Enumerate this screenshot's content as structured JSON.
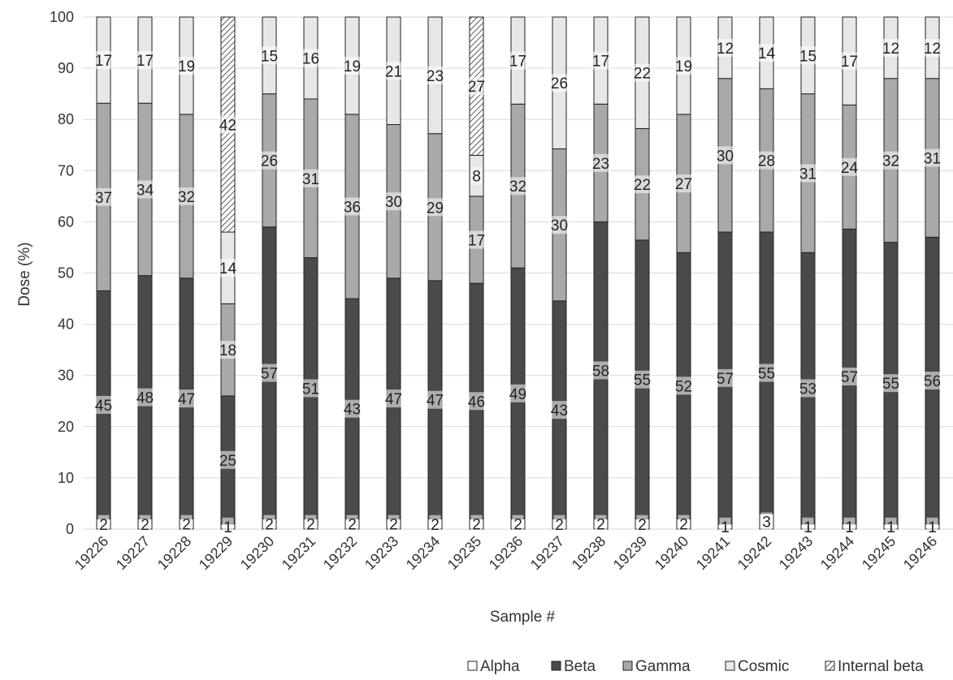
{
  "chart_data": {
    "type": "bar",
    "stacked": true,
    "normalized_percent": true,
    "title": "",
    "xlabel": "Sample #",
    "ylabel": "Dose (%)",
    "ylim": [
      0,
      100
    ],
    "yticks": [
      0,
      10,
      20,
      30,
      40,
      50,
      60,
      70,
      80,
      90,
      100
    ],
    "grid": "horizontal",
    "legend_position": "bottom-right",
    "categories": [
      "19226",
      "19227",
      "19228",
      "19229",
      "19230",
      "19231",
      "19232",
      "19233",
      "19234",
      "19235",
      "19236",
      "19237",
      "19238",
      "19239",
      "19240",
      "19241",
      "19242",
      "19243",
      "19244",
      "19245",
      "19246"
    ],
    "series": [
      {
        "name": "Alpha",
        "color": "#ffffff",
        "pattern": "none",
        "values": [
          2,
          2,
          2,
          1,
          2,
          2,
          2,
          2,
          2,
          2,
          2,
          2,
          2,
          2,
          2,
          1,
          3,
          1,
          1,
          1,
          1
        ],
        "labels": [
          "2",
          "2",
          "2",
          "1",
          "2",
          "2",
          "2",
          "2",
          "2",
          "2",
          "2",
          "2",
          "2",
          "2",
          "2",
          "1",
          "3",
          "1",
          "1",
          "1",
          "1"
        ]
      },
      {
        "name": "Beta",
        "color": "#4a4a4a",
        "pattern": "none",
        "values": [
          45,
          48,
          47,
          25,
          57,
          51,
          43,
          47,
          47,
          46,
          49,
          43,
          58,
          55,
          52,
          57,
          55,
          53,
          57,
          55,
          56
        ],
        "labels": [
          "45",
          "48",
          "47",
          "25",
          "57",
          "51",
          "43",
          "47",
          "47",
          "46",
          "49",
          "43",
          "58",
          "55",
          "52",
          "57",
          "55",
          "53",
          "57",
          "55",
          "56"
        ]
      },
      {
        "name": "Gamma",
        "color": "#a9a9a9",
        "pattern": "none",
        "values": [
          37,
          34,
          32,
          18,
          26,
          31,
          36,
          30,
          29,
          17,
          32,
          30,
          23,
          22,
          27,
          30,
          28,
          31,
          24,
          32,
          31
        ],
        "labels": [
          "37",
          "34",
          "32",
          "18",
          "26",
          "31",
          "36",
          "30",
          "29",
          "17",
          "32",
          "30",
          "23",
          "22",
          "27",
          "30",
          "28",
          "31",
          "24",
          "32",
          "31"
        ]
      },
      {
        "name": "Cosmic",
        "color": "#e7e7e7",
        "pattern": "none",
        "values": [
          17,
          17,
          19,
          14,
          15,
          16,
          19,
          21,
          23,
          8,
          17,
          26,
          17,
          22,
          19,
          12,
          14,
          15,
          17,
          12,
          12
        ],
        "labels": [
          "17",
          "17",
          "19",
          "14",
          "15",
          "16",
          "19",
          "21",
          "23",
          "8",
          "17",
          "26",
          "17",
          "22",
          "19",
          "12",
          "14",
          "15",
          "17",
          "12",
          "12"
        ]
      },
      {
        "name": "Internal beta",
        "color": "#ffffff",
        "pattern": "hatch",
        "values": [
          0,
          0,
          0,
          42,
          0,
          0,
          0,
          0,
          0,
          27,
          0,
          0,
          0,
          0,
          0,
          0,
          0,
          0,
          0,
          0,
          0
        ],
        "labels": [
          "",
          "",
          "",
          "42",
          "",
          "",
          "",
          "",
          "",
          "27",
          "",
          "",
          "",
          "",
          "",
          "",
          "",
          "",
          "",
          "",
          ""
        ]
      }
    ]
  }
}
